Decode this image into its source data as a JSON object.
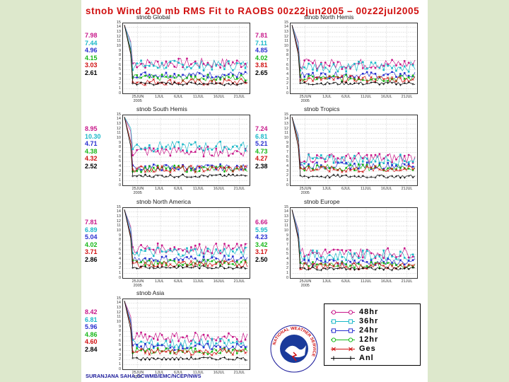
{
  "title": "stnob  Wind  200  mb  RMS  Fit  to  RAOBS  00z22jun2005  –  00z22jul2005",
  "footer": "SURANJANA SAHA,GCWMB/EMC/NCEP/NWS",
  "colors": {
    "h48": "#c8188a",
    "h36": "#1ab8c8",
    "h24": "#2830d0",
    "h12": "#18b818",
    "ges": "#d01010",
    "anl": "#000000"
  },
  "legend": [
    {
      "key": "h48",
      "label": "48hr",
      "marker": "circle"
    },
    {
      "key": "h36",
      "label": "36hr",
      "marker": "square"
    },
    {
      "key": "h24",
      "label": "24hr",
      "marker": "square"
    },
    {
      "key": "h12",
      "label": "12hr",
      "marker": "circle"
    },
    {
      "key": "ges",
      "label": "Ges",
      "marker": "x"
    },
    {
      "key": "anl",
      "label": "Anl",
      "marker": "plus"
    }
  ],
  "seal_text": "NATIONAL WEATHER SERVICE",
  "chart_data": [
    {
      "type": "line",
      "title": "stnob Global",
      "ylim": [
        0,
        15
      ],
      "yticks": [
        0,
        1,
        2,
        3,
        4,
        5,
        6,
        7,
        8,
        9,
        10,
        11,
        12,
        13,
        14,
        15
      ],
      "xlabels": [
        "25JUN",
        "1JUL",
        "6JUL",
        "11JUL",
        "16JUL",
        "21JUL"
      ],
      "year": "2005",
      "stats": [
        {
          "key": "h48",
          "value": "7.98"
        },
        {
          "key": "h36",
          "value": "7.44"
        },
        {
          "key": "h24",
          "value": "4.96"
        },
        {
          "key": "h12",
          "value": "4.15"
        },
        {
          "key": "ges",
          "value": "3.03"
        },
        {
          "key": "anl",
          "value": "2.61"
        }
      ]
    },
    {
      "type": "line",
      "title": "stnob North Hemis",
      "ylim": [
        0,
        15
      ],
      "yticks": [
        0,
        1,
        2,
        3,
        4,
        5,
        6,
        7,
        8,
        9,
        10,
        11,
        12,
        13,
        14,
        15
      ],
      "xlabels": [
        "25JUN",
        "1JUL",
        "6JUL",
        "11JUL",
        "16JUL",
        "21JUL"
      ],
      "year": "2005",
      "stats": [
        {
          "key": "h48",
          "value": "7.81"
        },
        {
          "key": "h36",
          "value": "7.11"
        },
        {
          "key": "h24",
          "value": "4.85"
        },
        {
          "key": "h12",
          "value": "4.02"
        },
        {
          "key": "ges",
          "value": "3.81"
        },
        {
          "key": "anl",
          "value": "2.65"
        }
      ]
    },
    {
      "type": "line",
      "title": "stnob South Hemis",
      "ylim": [
        0,
        15
      ],
      "yticks": [
        0,
        1,
        2,
        3,
        4,
        5,
        6,
        7,
        8,
        9,
        10,
        11,
        12,
        13,
        14,
        15
      ],
      "xlabels": [
        "25JUN",
        "1JUL",
        "6JUL",
        "11JUL",
        "16JUL",
        "21JUL"
      ],
      "year": "2005",
      "stats": [
        {
          "key": "h48",
          "value": "8.95"
        },
        {
          "key": "h36",
          "value": "10.30"
        },
        {
          "key": "h24",
          "value": "4.71"
        },
        {
          "key": "h12",
          "value": "4.38"
        },
        {
          "key": "ges",
          "value": "4.32"
        },
        {
          "key": "anl",
          "value": "2.52"
        }
      ]
    },
    {
      "type": "line",
      "title": "stnob Tropics",
      "ylim": [
        0,
        15
      ],
      "yticks": [
        0,
        1,
        2,
        3,
        4,
        5,
        6,
        7,
        8,
        9,
        10,
        11,
        12,
        13,
        14,
        15
      ],
      "xlabels": [
        "25JUN",
        "1JUL",
        "6JUL",
        "11JUL",
        "16JUL",
        "21JUL"
      ],
      "year": "2005",
      "stats": [
        {
          "key": "h48",
          "value": "7.24"
        },
        {
          "key": "h36",
          "value": "6.81"
        },
        {
          "key": "h24",
          "value": "5.21"
        },
        {
          "key": "h12",
          "value": "4.73"
        },
        {
          "key": "ges",
          "value": "4.27"
        },
        {
          "key": "anl",
          "value": "2.38"
        }
      ]
    },
    {
      "type": "line",
      "title": "stnob North America",
      "ylim": [
        0,
        15
      ],
      "yticks": [
        0,
        1,
        2,
        3,
        4,
        5,
        6,
        7,
        8,
        9,
        10,
        11,
        12,
        13,
        14,
        15
      ],
      "xlabels": [
        "25JUN",
        "1JUL",
        "6JUL",
        "11JUL",
        "16JUL",
        "21JUL"
      ],
      "year": "2005",
      "stats": [
        {
          "key": "h48",
          "value": "7.81"
        },
        {
          "key": "h36",
          "value": "6.89"
        },
        {
          "key": "h24",
          "value": "5.04"
        },
        {
          "key": "h12",
          "value": "4.02"
        },
        {
          "key": "ges",
          "value": "3.71"
        },
        {
          "key": "anl",
          "value": "2.86"
        }
      ]
    },
    {
      "type": "line",
      "title": "stnob Europe",
      "ylim": [
        0,
        15
      ],
      "yticks": [
        0,
        1,
        2,
        3,
        4,
        5,
        6,
        7,
        8,
        9,
        10,
        11,
        12,
        13,
        14,
        15
      ],
      "xlabels": [
        "25JUN",
        "1JUL",
        "6JUL",
        "11JUL",
        "16JUL",
        "21JUL"
      ],
      "year": "2005",
      "stats": [
        {
          "key": "h48",
          "value": "6.66"
        },
        {
          "key": "h36",
          "value": "5.95"
        },
        {
          "key": "h24",
          "value": "4.23"
        },
        {
          "key": "h12",
          "value": "3.42"
        },
        {
          "key": "ges",
          "value": "3.17"
        },
        {
          "key": "anl",
          "value": "2.50"
        }
      ]
    },
    {
      "type": "line",
      "title": "stnob Asia",
      "ylim": [
        0,
        15
      ],
      "yticks": [
        0,
        1,
        2,
        3,
        4,
        5,
        6,
        7,
        8,
        9,
        10,
        11,
        12,
        13,
        14,
        15
      ],
      "xlabels": [
        "25JUN",
        "1JUL",
        "6JUL",
        "11JUL",
        "16JUL",
        "21JUL"
      ],
      "year": "2005",
      "stats": [
        {
          "key": "h48",
          "value": "8.42"
        },
        {
          "key": "h36",
          "value": "6.81"
        },
        {
          "key": "h24",
          "value": "5.96"
        },
        {
          "key": "h12",
          "value": "4.86"
        },
        {
          "key": "ges",
          "value": "4.60"
        },
        {
          "key": "anl",
          "value": "2.84"
        }
      ]
    }
  ]
}
